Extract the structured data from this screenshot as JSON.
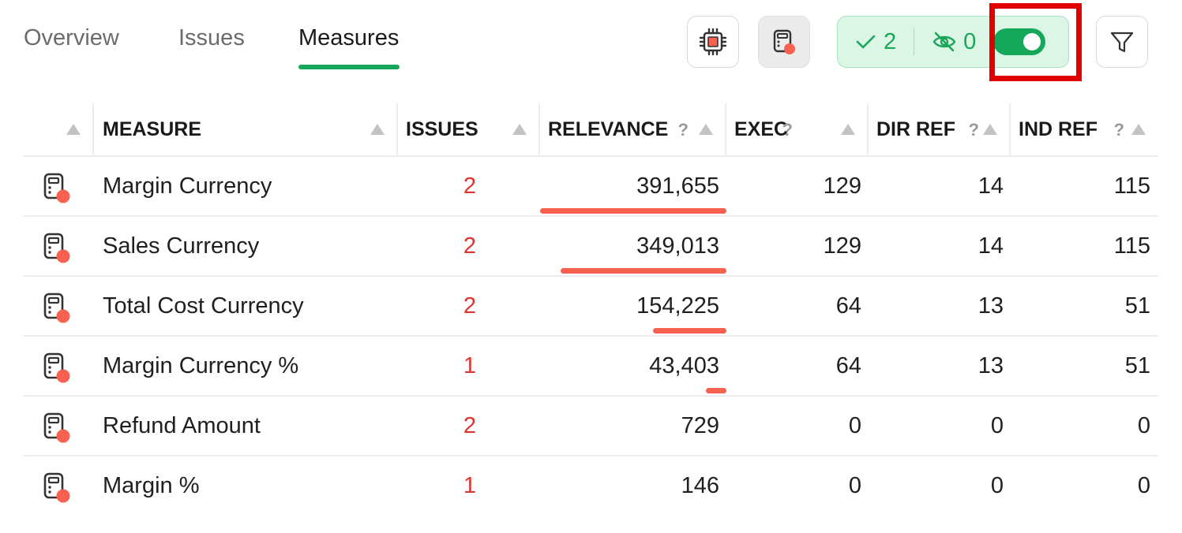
{
  "tabs": [
    {
      "label": "Overview",
      "active": false
    },
    {
      "label": "Issues",
      "active": false
    },
    {
      "label": "Measures",
      "active": true
    }
  ],
  "toolbar": {
    "model_icon": "chip-icon",
    "measure_icon": "calculator-icon",
    "passed_count": "2",
    "hidden_count": "0",
    "toggle_on": true,
    "filter_icon": "filter-icon"
  },
  "colors": {
    "accent_green": "#15a85b",
    "issue_red": "#e0322f",
    "relevance_bar": "#f8614f",
    "highlight_red": "#e00000"
  },
  "table": {
    "columns": [
      {
        "key": "icon",
        "label": ""
      },
      {
        "key": "measure",
        "label": "MEASURE"
      },
      {
        "key": "issues",
        "label": "ISSUES"
      },
      {
        "key": "relevance",
        "label": "RELEVANCE",
        "help": "?"
      },
      {
        "key": "exec",
        "label": "EXEC",
        "help": "?"
      },
      {
        "key": "dir_ref",
        "label": "DIR REF",
        "help": "?"
      },
      {
        "key": "ind_ref",
        "label": "IND REF",
        "help": "?"
      }
    ],
    "relevance_max": 391655,
    "rows": [
      {
        "measure": "Margin Currency",
        "issues": "2",
        "relevance": "391,655",
        "relevance_value": 391655,
        "exec": "129",
        "dir_ref": "14",
        "ind_ref": "115"
      },
      {
        "measure": "Sales Currency",
        "issues": "2",
        "relevance": "349,013",
        "relevance_value": 349013,
        "exec": "129",
        "dir_ref": "14",
        "ind_ref": "115"
      },
      {
        "measure": "Total Cost Currency",
        "issues": "2",
        "relevance": "154,225",
        "relevance_value": 154225,
        "exec": "64",
        "dir_ref": "13",
        "ind_ref": "51"
      },
      {
        "measure": "Margin Currency %",
        "issues": "1",
        "relevance": "43,403",
        "relevance_value": 43403,
        "exec": "64",
        "dir_ref": "13",
        "ind_ref": "51"
      },
      {
        "measure": "Refund Amount",
        "issues": "2",
        "relevance": "729",
        "relevance_value": 729,
        "exec": "0",
        "dir_ref": "0",
        "ind_ref": "0"
      },
      {
        "measure": "Margin %",
        "issues": "1",
        "relevance": "146",
        "relevance_value": 146,
        "exec": "0",
        "dir_ref": "0",
        "ind_ref": "0"
      }
    ]
  }
}
